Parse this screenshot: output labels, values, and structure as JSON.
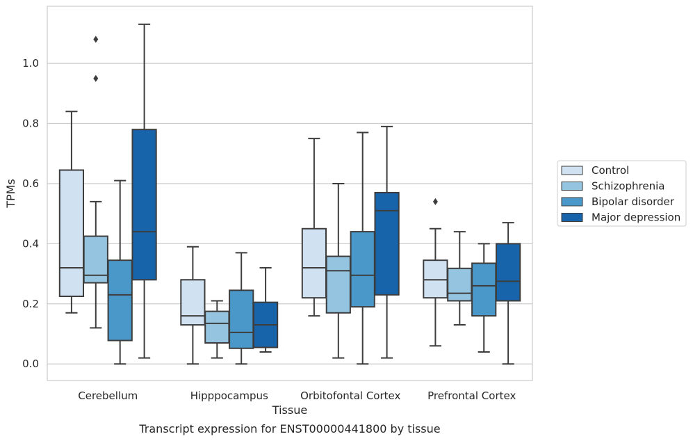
{
  "caption": "Transcript expression for ENST00000441800 by tissue",
  "chart_data": {
    "type": "boxplot",
    "title": "",
    "xlabel": "Tissue",
    "ylabel": "TPMs",
    "categories": [
      "Cerebellum",
      "Hipppocampus",
      "Orbitofontal Cortex",
      "Prefrontal Cortex"
    ],
    "ylim": [
      -0.055,
      1.19
    ],
    "yticks": [
      0.0,
      0.2,
      0.4,
      0.6,
      0.8,
      1.0
    ],
    "ytick_labels": [
      "0.0",
      "0.2",
      "0.4",
      "0.6",
      "0.8",
      "1.0"
    ],
    "grid": "horizontal",
    "legend_position": "right",
    "series": [
      {
        "name": "Control",
        "color": "#d0e1f2",
        "boxes": [
          {
            "whislo": 0.17,
            "q1": 0.225,
            "med": 0.32,
            "q3": 0.645,
            "whishi": 0.84,
            "fliers": []
          },
          {
            "whislo": 0.0,
            "q1": 0.13,
            "med": 0.16,
            "q3": 0.28,
            "whishi": 0.39,
            "fliers": []
          },
          {
            "whislo": 0.16,
            "q1": 0.22,
            "med": 0.32,
            "q3": 0.45,
            "whishi": 0.75,
            "fliers": []
          },
          {
            "whislo": 0.06,
            "q1": 0.22,
            "med": 0.28,
            "q3": 0.345,
            "whishi": 0.45,
            "fliers": [
              0.54
            ]
          }
        ]
      },
      {
        "name": "Schizophrenia",
        "color": "#94c4df",
        "boxes": [
          {
            "whislo": 0.12,
            "q1": 0.27,
            "med": 0.295,
            "q3": 0.425,
            "whishi": 0.54,
            "fliers": [
              1.08,
              0.95
            ]
          },
          {
            "whislo": 0.02,
            "q1": 0.07,
            "med": 0.135,
            "q3": 0.175,
            "whishi": 0.21,
            "fliers": []
          },
          {
            "whislo": 0.02,
            "q1": 0.17,
            "med": 0.31,
            "q3": 0.358,
            "whishi": 0.6,
            "fliers": []
          },
          {
            "whislo": 0.13,
            "q1": 0.21,
            "med": 0.235,
            "q3": 0.318,
            "whishi": 0.44,
            "fliers": []
          }
        ]
      },
      {
        "name": "Bipolar disorder",
        "color": "#4a98c9",
        "boxes": [
          {
            "whislo": 0.0,
            "q1": 0.078,
            "med": 0.23,
            "q3": 0.345,
            "whishi": 0.61,
            "fliers": []
          },
          {
            "whislo": 0.0,
            "q1": 0.052,
            "med": 0.105,
            "q3": 0.245,
            "whishi": 0.37,
            "fliers": []
          },
          {
            "whislo": 0.0,
            "q1": 0.19,
            "med": 0.295,
            "q3": 0.44,
            "whishi": 0.77,
            "fliers": []
          },
          {
            "whislo": 0.04,
            "q1": 0.16,
            "med": 0.26,
            "q3": 0.335,
            "whishi": 0.4,
            "fliers": []
          }
        ]
      },
      {
        "name": "Major depression",
        "color": "#1764ab",
        "boxes": [
          {
            "whislo": 0.02,
            "q1": 0.28,
            "med": 0.44,
            "q3": 0.78,
            "whishi": 1.13,
            "fliers": []
          },
          {
            "whislo": 0.04,
            "q1": 0.055,
            "med": 0.13,
            "q3": 0.205,
            "whishi": 0.32,
            "fliers": []
          },
          {
            "whislo": 0.02,
            "q1": 0.23,
            "med": 0.51,
            "q3": 0.57,
            "whishi": 0.79,
            "fliers": []
          },
          {
            "whislo": 0.0,
            "q1": 0.21,
            "med": 0.275,
            "q3": 0.4,
            "whishi": 0.47,
            "fliers": []
          }
        ]
      }
    ]
  }
}
